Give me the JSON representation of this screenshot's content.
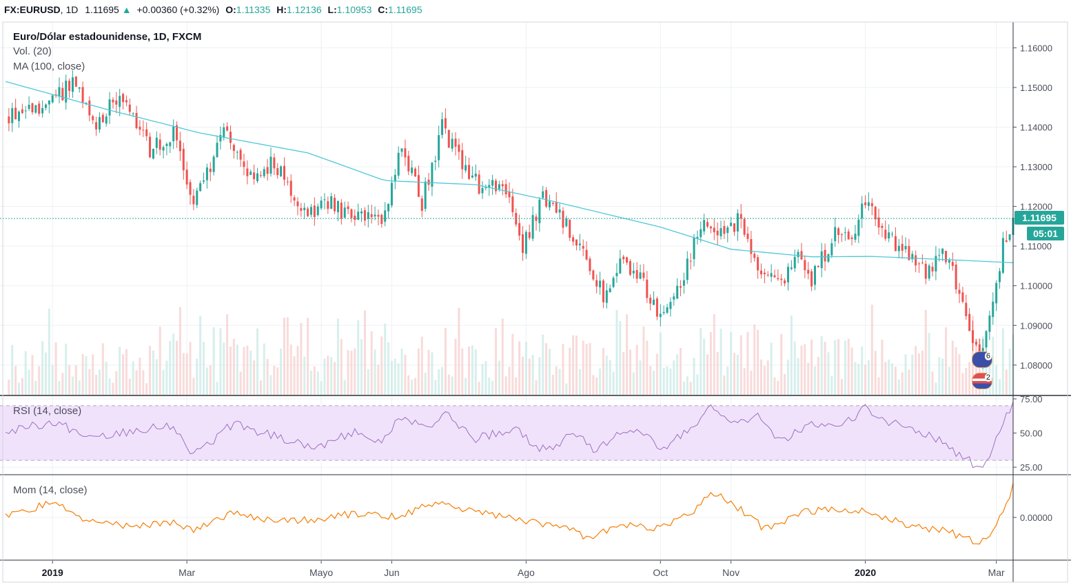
{
  "header": {
    "symbol": "FX:EURUSD",
    "interval": "1D",
    "price": "1.11695",
    "change_arrow": "▲",
    "change": "+0.00360 (+0.32%)",
    "open_label": "O:",
    "open": "1.11335",
    "high_label": "H:",
    "high": "1.12136",
    "low_label": "L:",
    "low": "1.10953",
    "close_label": "C:",
    "close": "1.11695"
  },
  "legend": {
    "title": "Euro/Dólar estadounidense, 1D, FXCM",
    "volume": "Vol. (20)",
    "ma": "MA (100, close)",
    "rsi": "RSI (14, close)",
    "mom": "Mom (14, close)"
  },
  "price_tag": {
    "price": "1.11695",
    "countdown": "05:01"
  },
  "events": {
    "eu_count": "6",
    "us_count": "2"
  },
  "colors": {
    "up": "#26a69a",
    "down": "#ef5350",
    "ma": "#4dc8d8",
    "rsi_line": "#9c6fc0",
    "rsi_band": "#f0e2fb",
    "mom_line": "#f57c00",
    "grid": "#eef0f3"
  },
  "chart_data": [
    {
      "type": "candlestick",
      "title": "Euro/Dólar estadounidense, 1D, FXCM",
      "ylim": [
        1.0725,
        1.1665
      ],
      "y_ticks": [
        "1.16000",
        "1.15000",
        "1.14000",
        "1.13000",
        "1.12000",
        "1.11000",
        "1.10000",
        "1.09000",
        "1.08000"
      ],
      "y_tick_values": [
        1.16,
        1.15,
        1.14,
        1.13,
        1.12,
        1.11,
        1.1,
        1.09,
        1.08
      ],
      "x_ticks": [
        "2019",
        "Mar",
        "Mayo",
        "Jun",
        "Ago",
        "Oct",
        "Nov",
        "2020",
        "Mar"
      ],
      "x_tick_index": [
        14,
        54,
        94,
        115,
        155,
        195,
        216,
        256,
        295
      ],
      "last_price": 1.11695,
      "anchor_closes": [
        [
          0,
          1.143
        ],
        [
          14,
          1.146
        ],
        [
          20,
          1.152
        ],
        [
          26,
          1.14
        ],
        [
          34,
          1.148
        ],
        [
          43,
          1.134
        ],
        [
          50,
          1.138
        ],
        [
          56,
          1.121
        ],
        [
          66,
          1.14
        ],
        [
          72,
          1.126
        ],
        [
          80,
          1.131
        ],
        [
          90,
          1.118
        ],
        [
          96,
          1.121
        ],
        [
          104,
          1.117
        ],
        [
          112,
          1.116
        ],
        [
          118,
          1.135
        ],
        [
          124,
          1.121
        ],
        [
          130,
          1.14
        ],
        [
          136,
          1.131
        ],
        [
          142,
          1.124
        ],
        [
          148,
          1.126
        ],
        [
          154,
          1.11
        ],
        [
          160,
          1.122
        ],
        [
          165,
          1.118
        ],
        [
          172,
          1.108
        ],
        [
          178,
          1.098
        ],
        [
          184,
          1.107
        ],
        [
          190,
          1.1
        ],
        [
          195,
          1.091
        ],
        [
          202,
          1.103
        ],
        [
          208,
          1.117
        ],
        [
          214,
          1.112
        ],
        [
          218,
          1.117
        ],
        [
          224,
          1.104
        ],
        [
          230,
          1.1
        ],
        [
          236,
          1.107
        ],
        [
          240,
          1.102
        ],
        [
          247,
          1.113
        ],
        [
          252,
          1.112
        ],
        [
          256,
          1.121
        ],
        [
          262,
          1.113
        ],
        [
          268,
          1.108
        ],
        [
          274,
          1.103
        ],
        [
          280,
          1.108
        ],
        [
          285,
          1.096
        ],
        [
          290,
          1.08
        ],
        [
          294,
          1.095
        ],
        [
          297,
          1.11
        ],
        [
          299,
          1.11335
        ],
        [
          300,
          1.11695
        ]
      ],
      "moving_average": {
        "name": "MA (100, close)",
        "points": [
          [
            0,
            1.1515
          ],
          [
            30,
            1.1445
          ],
          [
            58,
            1.1385
          ],
          [
            90,
            1.1335
          ],
          [
            113,
            1.1265
          ],
          [
            140,
            1.1255
          ],
          [
            162,
            1.1215
          ],
          [
            195,
            1.1148
          ],
          [
            216,
            1.1092
          ],
          [
            240,
            1.1073
          ],
          [
            258,
            1.1074
          ],
          [
            285,
            1.1064
          ],
          [
            300,
            1.1058
          ]
        ]
      },
      "volume": {
        "name": "Vol. (20)",
        "range_fraction": [
          0.12,
          1.0
        ]
      }
    },
    {
      "type": "line",
      "name": "RSI (14, close)",
      "ylim": [
        20,
        77
      ],
      "y_ticks": [
        "75.00",
        "50.00",
        "25.00"
      ],
      "y_tick_values": [
        75,
        50,
        25
      ],
      "band": [
        30,
        70
      ],
      "points": [
        [
          0,
          52
        ],
        [
          14,
          58
        ],
        [
          26,
          47
        ],
        [
          40,
          53
        ],
        [
          50,
          56
        ],
        [
          56,
          34
        ],
        [
          68,
          57
        ],
        [
          80,
          48
        ],
        [
          92,
          40
        ],
        [
          104,
          50
        ],
        [
          112,
          44
        ],
        [
          118,
          62
        ],
        [
          126,
          52
        ],
        [
          130,
          66
        ],
        [
          140,
          46
        ],
        [
          152,
          52
        ],
        [
          160,
          38
        ],
        [
          170,
          49
        ],
        [
          176,
          37
        ],
        [
          186,
          55
        ],
        [
          196,
          38
        ],
        [
          204,
          55
        ],
        [
          210,
          68
        ],
        [
          216,
          56
        ],
        [
          224,
          62
        ],
        [
          230,
          44
        ],
        [
          240,
          55
        ],
        [
          248,
          53
        ],
        [
          256,
          68
        ],
        [
          266,
          55
        ],
        [
          274,
          50
        ],
        [
          282,
          38
        ],
        [
          290,
          24
        ],
        [
          294,
          38
        ],
        [
          298,
          64
        ],
        [
          300,
          72
        ]
      ]
    },
    {
      "type": "line",
      "name": "Mom (14, close)",
      "ylim": [
        -0.022,
        0.022
      ],
      "y_ticks": [
        "0.00000"
      ],
      "y_tick_values": [
        0
      ],
      "points": [
        [
          0,
          0.0
        ],
        [
          14,
          0.008
        ],
        [
          22,
          0.0
        ],
        [
          38,
          -0.005
        ],
        [
          48,
          -0.002
        ],
        [
          56,
          -0.006
        ],
        [
          68,
          0.003
        ],
        [
          80,
          -0.002
        ],
        [
          92,
          -0.001
        ],
        [
          104,
          0.002
        ],
        [
          118,
          0.0
        ],
        [
          126,
          0.008
        ],
        [
          136,
          0.004
        ],
        [
          148,
          0.001
        ],
        [
          160,
          -0.004
        ],
        [
          168,
          -0.006
        ],
        [
          174,
          -0.011
        ],
        [
          182,
          -0.004
        ],
        [
          194,
          -0.006
        ],
        [
          204,
          0.002
        ],
        [
          210,
          0.013
        ],
        [
          216,
          0.008
        ],
        [
          226,
          -0.006
        ],
        [
          238,
          0.003
        ],
        [
          248,
          0.004
        ],
        [
          256,
          0.004
        ],
        [
          268,
          -0.004
        ],
        [
          280,
          -0.007
        ],
        [
          290,
          -0.014
        ],
        [
          295,
          -0.005
        ],
        [
          300,
          0.016
        ]
      ]
    }
  ]
}
